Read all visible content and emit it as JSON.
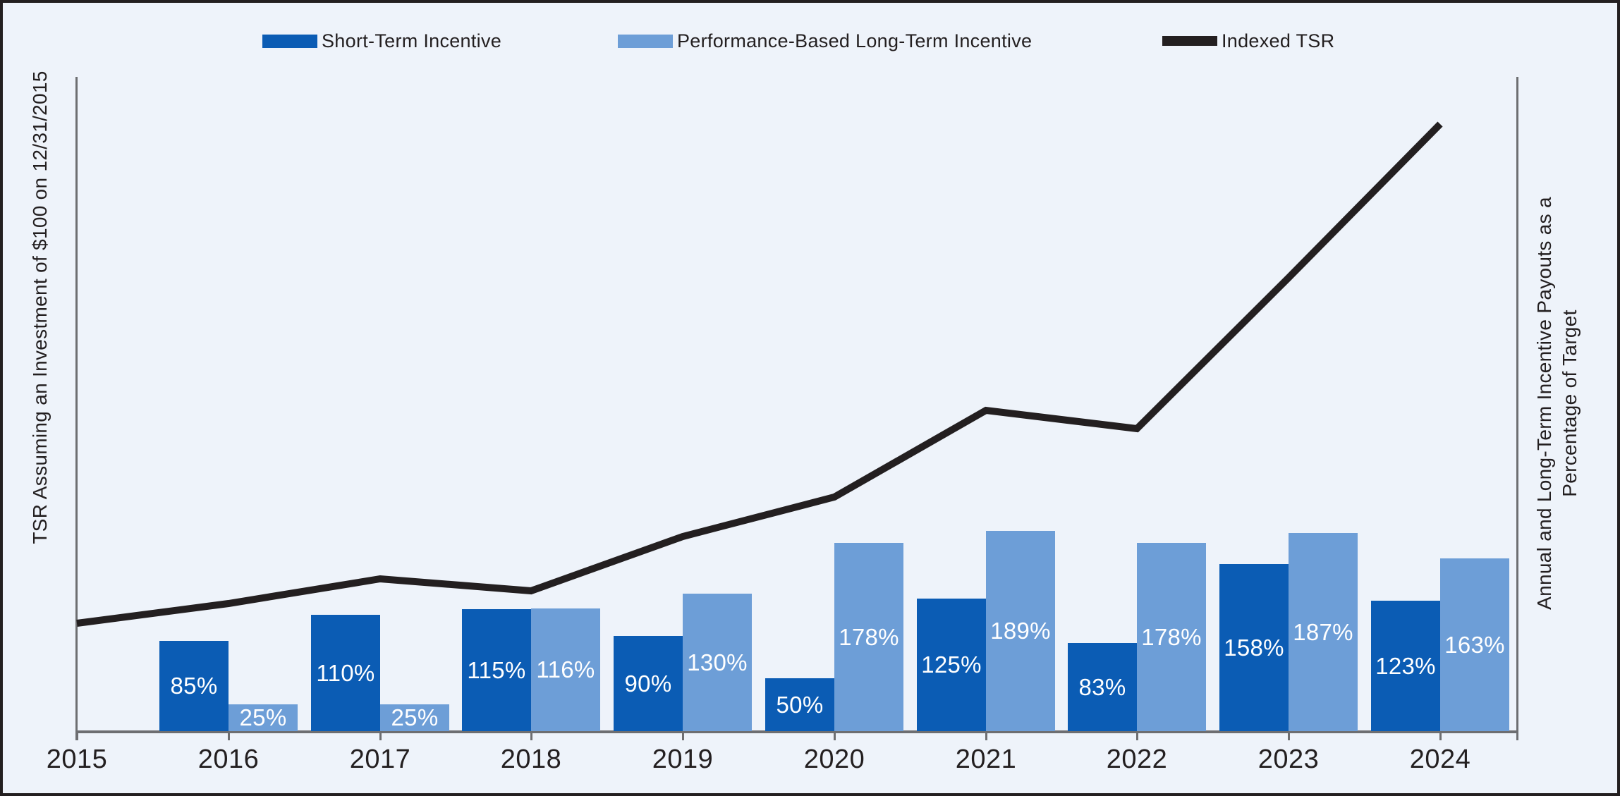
{
  "legend": {
    "position": "top",
    "items": [
      {
        "swatch": "short-term-bar-swatch"
      },
      {
        "swatch": "long-term-bar-swatch"
      },
      {
        "swatch": "tsr-line-swatch"
      }
    ]
  },
  "axes": {
    "left_label": "TSR Assuming an Investment of $100 on 12/31/2015",
    "right_label_line1": "Annual and Long-Term Incentive Payouts as a",
    "right_label_line2": "Percentage of Target"
  },
  "chart_data": {
    "type": "combo_bar_line",
    "categories": [
      "2015",
      "2016",
      "2017",
      "2018",
      "2019",
      "2020",
      "2021",
      "2022",
      "2023",
      "2024"
    ],
    "series": [
      {
        "name": "Short-Term Incentive",
        "type": "bar",
        "color": "#0B5CB4",
        "unit": "%",
        "values": [
          null,
          85,
          110,
          115,
          90,
          50,
          125,
          83,
          158,
          123
        ]
      },
      {
        "name": "Performance-Based Long-Term Incentive",
        "type": "bar",
        "color": "#6D9ED7",
        "unit": "%",
        "values": [
          null,
          25,
          25,
          116,
          130,
          178,
          189,
          178,
          187,
          163
        ]
      },
      {
        "name": "Indexed TSR",
        "type": "line",
        "color": "#231F20",
        "values_estimated": [
          100,
          118,
          141,
          130,
          180,
          216,
          296,
          279,
          418,
          560
        ],
        "note": "line has no numeric axis; values estimated from plot, indexed to $100 on 12/31/2015"
      }
    ],
    "ylabel_left": "TSR Assuming an Investment of $100 on 12/31/2015",
    "ylabel_right": "Annual and Long-Term Incentive Payouts as a Percentage of Target",
    "bar_value_labels_shown": true,
    "grid": false,
    "legend_position": "top"
  },
  "colors": {
    "background": "#EEF3FA",
    "short_term_bar": "#0B5CB4",
    "long_term_bar": "#6D9ED7",
    "tsr_line": "#231F20",
    "axis": "#6D6E71",
    "text": "#231F20",
    "bar_label_text": "#FFFFFF",
    "border": "#231F20"
  }
}
